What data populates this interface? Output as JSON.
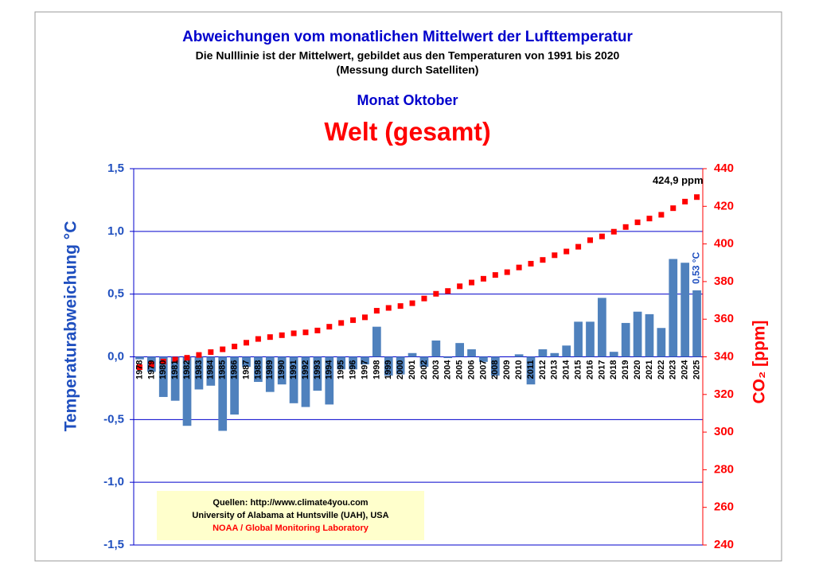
{
  "chart_data": {
    "type": "bar",
    "title": "Abweichungen vom monatlichen Mittelwert der Lufttemperatur",
    "subtitle": [
      "Die Nulllinie ist der Mittelwert, gebildet aus den Temperaturen von 1991 bis 2020",
      "(Messung durch Satelliten)"
    ],
    "period": "Monat Oktober",
    "region": "Welt (gesamt)",
    "y_label": "Temperaturabweichung °C",
    "y2_label": "CO₂ [ppm]",
    "categories": [
      "1978",
      "1979",
      "1980",
      "1981",
      "1982",
      "1983",
      "1984",
      "1985",
      "1986",
      "1987",
      "1988",
      "1989",
      "1990",
      "1991",
      "1992",
      "1993",
      "1994",
      "1995",
      "1996",
      "1997",
      "1998",
      "1999",
      "2000",
      "2001",
      "2002",
      "2003",
      "2004",
      "2005",
      "2006",
      "2007",
      "2008",
      "2009",
      "2010",
      "2011",
      "2012",
      "2013",
      "2014",
      "2015",
      "2016",
      "2017",
      "2018",
      "2019",
      "2020",
      "2021",
      "2022",
      "2023",
      "2024",
      "2025"
    ],
    "series": [
      {
        "type": "bar",
        "color": "#4f81bd",
        "values": [
          -0.02,
          -0.12,
          -0.32,
          -0.35,
          -0.55,
          -0.26,
          -0.23,
          -0.59,
          -0.46,
          -0.08,
          -0.2,
          -0.28,
          -0.22,
          -0.37,
          -0.4,
          -0.27,
          -0.38,
          -0.1,
          -0.1,
          -0.06,
          0.24,
          -0.15,
          -0.14,
          0.03,
          -0.08,
          0.13,
          -0.01,
          0.11,
          0.06,
          -0.04,
          -0.15,
          0.0,
          0.02,
          -0.22,
          0.06,
          0.03,
          0.09,
          0.28,
          0.28,
          0.47,
          0.04,
          0.27,
          0.36,
          0.34,
          0.23,
          0.78,
          0.75,
          0.53
        ],
        "value_labels": [
          null,
          null,
          null,
          null,
          null,
          null,
          null,
          null,
          null,
          null,
          null,
          null,
          null,
          null,
          null,
          null,
          null,
          null,
          null,
          null,
          null,
          null,
          null,
          null,
          null,
          null,
          null,
          null,
          null,
          null,
          null,
          null,
          null,
          null,
          null,
          null,
          null,
          null,
          null,
          null,
          null,
          null,
          null,
          null,
          null,
          null,
          null,
          "0,53 °C"
        ]
      },
      {
        "type": "scatter",
        "axis": "y2",
        "color": "#ff0000",
        "values": [
          334.5,
          336.0,
          337.5,
          338.5,
          339.5,
          341.0,
          342.5,
          344.0,
          345.5,
          347.5,
          349.5,
          350.5,
          351.5,
          352.5,
          353.0,
          354.0,
          356.0,
          358.0,
          359.5,
          361.0,
          364.5,
          366.0,
          367.0,
          368.5,
          371.0,
          373.5,
          375.0,
          377.5,
          379.5,
          381.5,
          383.5,
          385.0,
          387.5,
          389.5,
          391.5,
          394.0,
          396.0,
          398.5,
          402.0,
          404.0,
          406.5,
          409.0,
          411.5,
          413.5,
          415.5,
          419.0,
          422.5,
          424.9
        ],
        "value_labels": [
          null,
          null,
          null,
          null,
          null,
          null,
          null,
          null,
          null,
          null,
          null,
          null,
          null,
          null,
          null,
          null,
          null,
          null,
          null,
          null,
          null,
          null,
          null,
          null,
          null,
          null,
          null,
          null,
          null,
          null,
          null,
          null,
          null,
          null,
          null,
          null,
          null,
          null,
          null,
          null,
          null,
          null,
          null,
          null,
          null,
          null,
          null,
          "424,9 ppm"
        ]
      }
    ],
    "ylim": [
      -1.5,
      1.5
    ],
    "yticks": [
      {
        "value": -1.5,
        "label": "-1,5"
      },
      {
        "value": -1,
        "label": "-1,0"
      },
      {
        "value": -0.5,
        "label": "-0,5"
      },
      {
        "value": 0,
        "label": "0,0"
      },
      {
        "value": 0.5,
        "label": "0,5"
      },
      {
        "value": 1,
        "label": "1,0"
      },
      {
        "value": 1.5,
        "label": "1,5"
      }
    ],
    "y2lim": [
      240,
      440
    ],
    "y2ticks": [
      240,
      260,
      280,
      300,
      320,
      340,
      360,
      380,
      400,
      420,
      440
    ],
    "grid": true,
    "sources": [
      "Quellen: http://www.climate4you.com",
      "University of Alabama at Huntsville (UAH), USA",
      "NOAA / Global Monitoring Laboratory"
    ]
  }
}
